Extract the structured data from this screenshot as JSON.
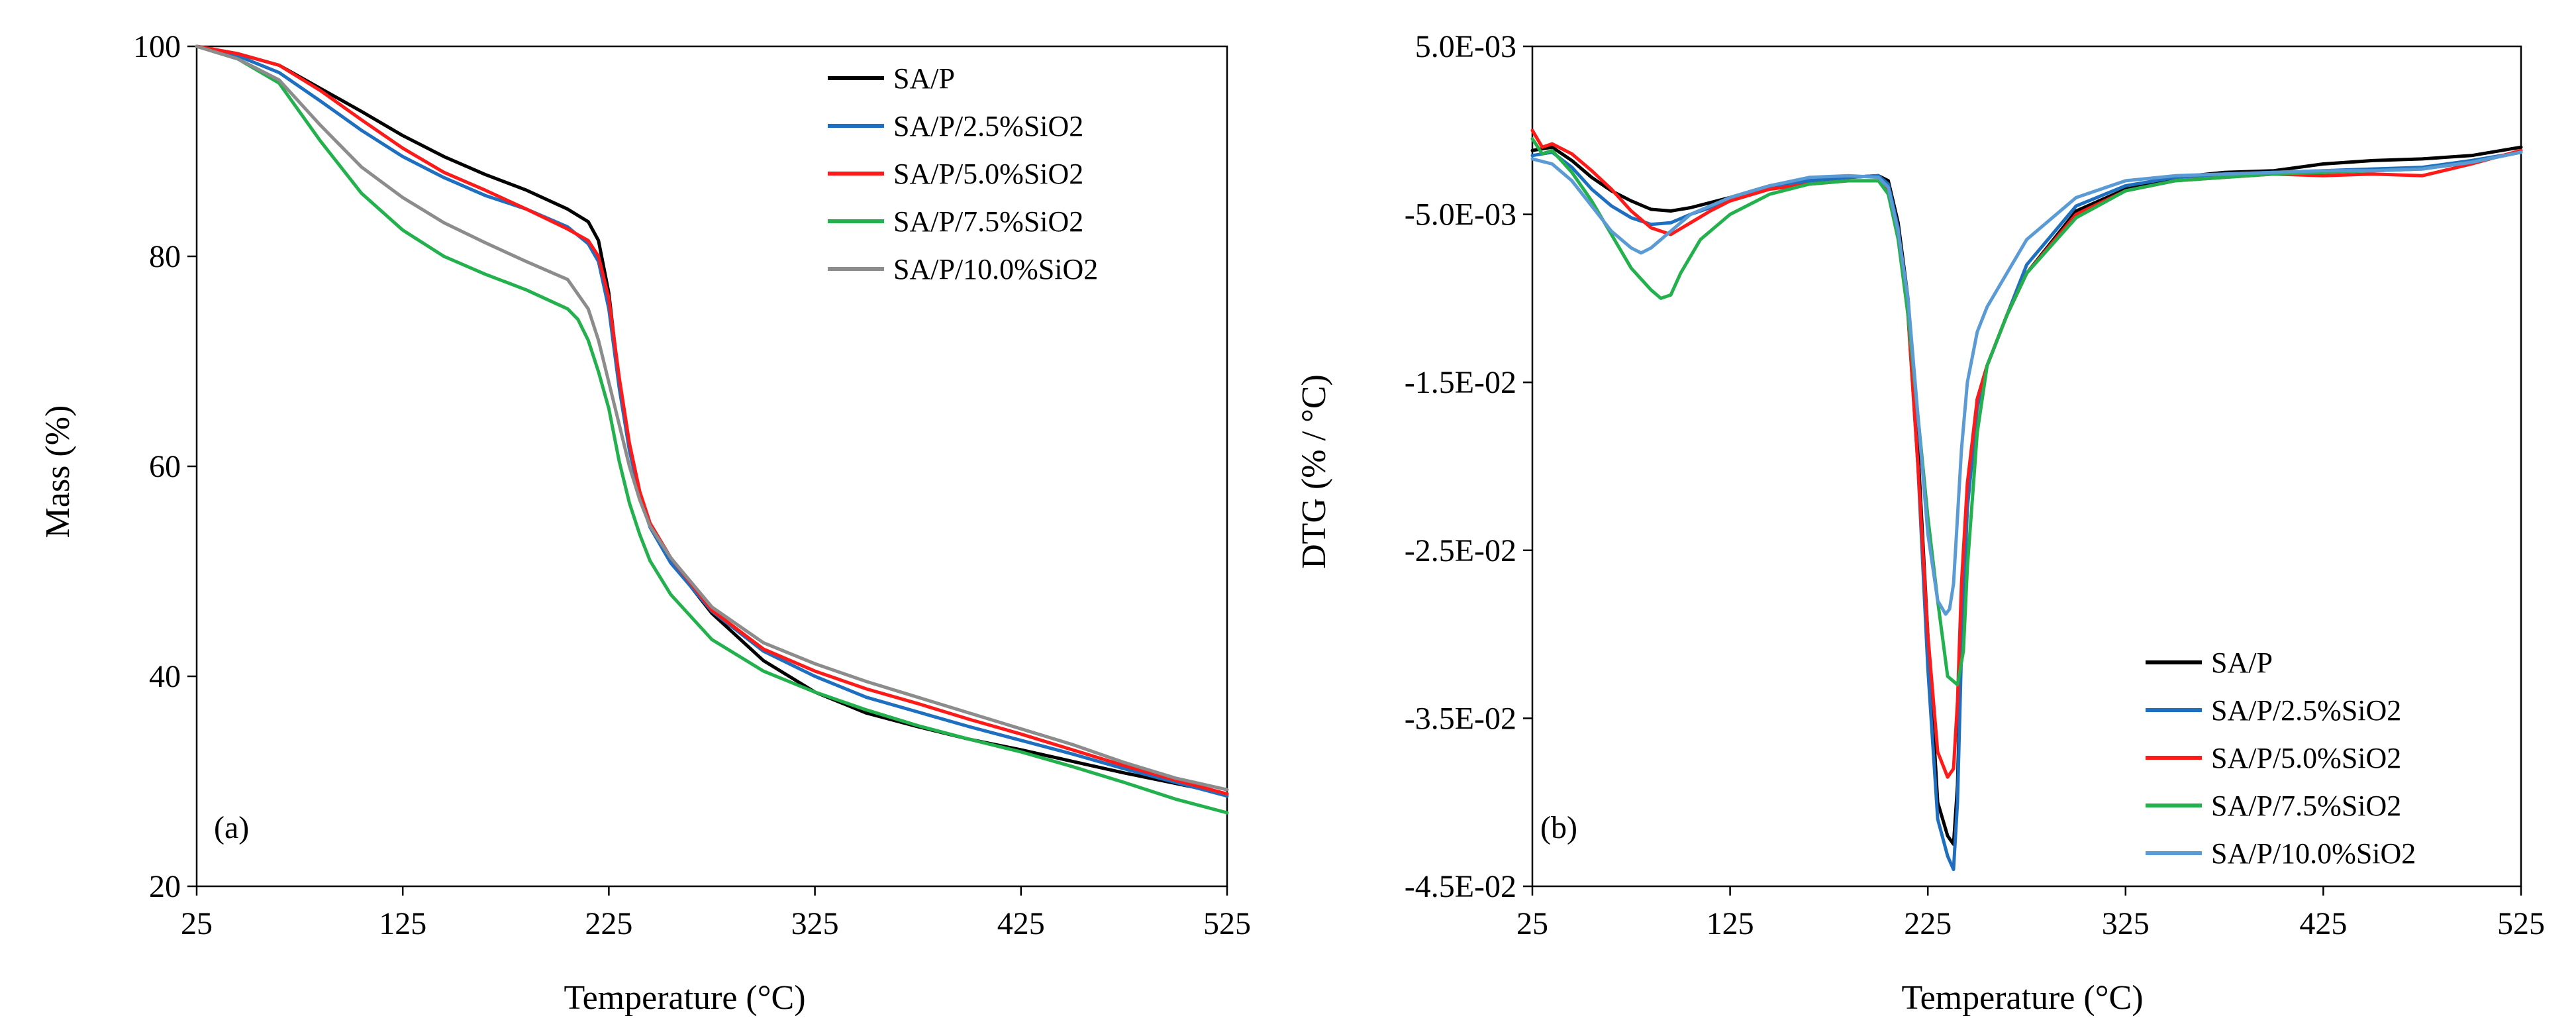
{
  "chart_data": [
    {
      "type": "line",
      "panel_label": "(a)",
      "xlabel": "Temperature (°C)",
      "ylabel": "Mass (%)",
      "xlim": [
        25,
        525
      ],
      "ylim": [
        20,
        100
      ],
      "xticks": [
        25,
        125,
        225,
        325,
        425,
        525
      ],
      "yticks": [
        20,
        40,
        60,
        80,
        100
      ],
      "ytick_labels": [
        "20",
        "40",
        "60",
        "80",
        "100"
      ],
      "legend_position": "top-right",
      "series": [
        {
          "name": "SA/P",
          "color": "#000000",
          "x": [
            25,
            45,
            65,
            85,
            105,
            125,
            145,
            165,
            185,
            205,
            215,
            220,
            225,
            230,
            235,
            240,
            245,
            255,
            275,
            300,
            325,
            350,
            375,
            400,
            425,
            450,
            475,
            500,
            525
          ],
          "y": [
            100,
            99.3,
            98.2,
            96.0,
            93.8,
            91.5,
            89.5,
            87.8,
            86.3,
            84.5,
            83.3,
            81.5,
            76.5,
            68.0,
            62.0,
            57.5,
            54.5,
            51.0,
            46.0,
            41.5,
            38.5,
            36.5,
            35.2,
            34.0,
            33.0,
            31.9,
            30.8,
            29.8,
            28.8
          ]
        },
        {
          "name": "SA/P/2.5%SiO2",
          "color": "#1f6fc0",
          "x": [
            25,
            45,
            65,
            85,
            105,
            125,
            145,
            165,
            185,
            205,
            215,
            220,
            225,
            230,
            235,
            240,
            245,
            255,
            275,
            300,
            325,
            350,
            375,
            400,
            425,
            450,
            475,
            500,
            525
          ],
          "y": [
            100,
            99.1,
            97.5,
            94.8,
            92.0,
            89.5,
            87.5,
            85.8,
            84.5,
            82.8,
            81.2,
            79.5,
            75.0,
            67.5,
            61.5,
            57.2,
            54.2,
            50.8,
            46.2,
            42.4,
            40.0,
            38.0,
            36.6,
            35.2,
            33.9,
            32.6,
            31.2,
            29.9,
            28.6
          ]
        },
        {
          "name": "SA/P/5.0%SiO2",
          "color": "#ff1a1a",
          "x": [
            25,
            45,
            65,
            85,
            105,
            125,
            145,
            165,
            185,
            205,
            215,
            220,
            225,
            230,
            235,
            240,
            245,
            255,
            275,
            300,
            325,
            350,
            375,
            400,
            425,
            450,
            475,
            500,
            525
          ],
          "y": [
            100,
            99.3,
            98.2,
            95.8,
            93.0,
            90.3,
            88.0,
            86.3,
            84.5,
            82.6,
            81.5,
            80.0,
            76.0,
            68.5,
            62.2,
            57.6,
            54.6,
            51.3,
            46.3,
            42.6,
            40.5,
            38.8,
            37.4,
            35.9,
            34.5,
            33.0,
            31.5,
            30.1,
            28.8
          ]
        },
        {
          "name": "SA/P/7.5%SiO2",
          "color": "#22b14c",
          "x": [
            25,
            45,
            65,
            85,
            105,
            125,
            145,
            165,
            185,
            205,
            210,
            215,
            220,
            225,
            230,
            235,
            240,
            245,
            255,
            275,
            300,
            325,
            350,
            375,
            400,
            425,
            450,
            475,
            500,
            525
          ],
          "y": [
            100,
            98.8,
            96.5,
            91.0,
            86.0,
            82.5,
            80.0,
            78.3,
            76.8,
            75.0,
            74.0,
            72.0,
            69.0,
            65.5,
            60.5,
            56.5,
            53.5,
            51.0,
            47.8,
            43.5,
            40.5,
            38.5,
            36.8,
            35.3,
            34.0,
            32.8,
            31.4,
            29.9,
            28.3,
            27.0
          ]
        },
        {
          "name": "SA/P/10.0%SiO2",
          "color": "#8c8c8c",
          "x": [
            25,
            45,
            65,
            85,
            105,
            125,
            145,
            165,
            185,
            205,
            215,
            220,
            225,
            230,
            235,
            240,
            245,
            255,
            275,
            300,
            325,
            350,
            375,
            400,
            425,
            450,
            475,
            500,
            525
          ],
          "y": [
            100,
            98.8,
            96.8,
            92.5,
            88.5,
            85.6,
            83.2,
            81.3,
            79.5,
            77.8,
            75.0,
            72.0,
            68.0,
            64.0,
            60.0,
            56.8,
            54.3,
            51.3,
            46.6,
            43.2,
            41.2,
            39.5,
            38.0,
            36.5,
            35.0,
            33.5,
            31.8,
            30.3,
            29.2
          ]
        }
      ]
    },
    {
      "type": "line",
      "panel_label": "(b)",
      "xlabel": "Temperature (°C)",
      "ylabel": "DTG (% / °C)",
      "xlim": [
        25,
        525
      ],
      "ylim": [
        -0.045,
        0.005
      ],
      "xticks": [
        25,
        125,
        225,
        325,
        425,
        525
      ],
      "yticks": [
        0.005,
        -0.005,
        -0.015,
        -0.025,
        -0.035,
        -0.045
      ],
      "ytick_labels": [
        "5.0E-03",
        "-5.0E-03",
        "-1.5E-02",
        "-2.5E-02",
        "-3.5E-02",
        "-4.5E-02"
      ],
      "legend_position": "bottom-right",
      "series": [
        {
          "name": "SA/P",
          "color": "#000000",
          "x": [
            25,
            35,
            45,
            55,
            65,
            75,
            85,
            95,
            105,
            125,
            145,
            165,
            185,
            200,
            205,
            210,
            215,
            220,
            225,
            230,
            235,
            238,
            240,
            242,
            245,
            250,
            255,
            265,
            275,
            300,
            325,
            350,
            375,
            400,
            425,
            450,
            475,
            500,
            525
          ],
          "y": [
            -0.0012,
            -0.001,
            -0.0018,
            -0.0028,
            -0.0036,
            -0.0042,
            -0.0047,
            -0.0048,
            -0.0046,
            -0.004,
            -0.0033,
            -0.003,
            -0.0028,
            -0.0027,
            -0.003,
            -0.0055,
            -0.01,
            -0.019,
            -0.03,
            -0.04,
            -0.042,
            -0.0425,
            -0.039,
            -0.03,
            -0.022,
            -0.016,
            -0.014,
            -0.011,
            -0.0085,
            -0.0048,
            -0.0035,
            -0.0028,
            -0.0025,
            -0.0024,
            -0.002,
            -0.0018,
            -0.0017,
            -0.0015,
            -0.001
          ]
        },
        {
          "name": "SA/P/2.5%SiO2",
          "color": "#1f6fc0",
          "x": [
            25,
            35,
            45,
            55,
            65,
            75,
            85,
            95,
            105,
            125,
            145,
            165,
            185,
            200,
            205,
            210,
            215,
            220,
            225,
            230,
            235,
            238,
            240,
            242,
            245,
            250,
            255,
            265,
            275,
            300,
            325,
            350,
            375,
            400,
            425,
            450,
            475,
            500,
            525
          ],
          "y": [
            -0.0015,
            -0.0013,
            -0.0022,
            -0.0035,
            -0.0045,
            -0.0052,
            -0.0056,
            -0.0055,
            -0.005,
            -0.0042,
            -0.0034,
            -0.003,
            -0.0028,
            -0.0027,
            -0.0032,
            -0.0058,
            -0.011,
            -0.02,
            -0.032,
            -0.041,
            -0.0432,
            -0.044,
            -0.04,
            -0.031,
            -0.0225,
            -0.0165,
            -0.014,
            -0.011,
            -0.008,
            -0.0045,
            -0.0033,
            -0.0028,
            -0.0026,
            -0.0025,
            -0.0024,
            -0.0023,
            -0.0022,
            -0.0018,
            -0.0013
          ]
        },
        {
          "name": "SA/P/5.0%SiO2",
          "color": "#ff1a1a",
          "x": [
            25,
            30,
            35,
            45,
            55,
            65,
            75,
            85,
            95,
            105,
            115,
            125,
            145,
            165,
            185,
            200,
            205,
            210,
            215,
            220,
            225,
            230,
            235,
            238,
            240,
            242,
            245,
            250,
            255,
            265,
            275,
            300,
            325,
            350,
            375,
            400,
            425,
            450,
            475,
            500,
            525
          ],
          "y": [
            0.0,
            -0.001,
            -0.0008,
            -0.0014,
            -0.0024,
            -0.0035,
            -0.0048,
            -0.0058,
            -0.0062,
            -0.0055,
            -0.0048,
            -0.0042,
            -0.0035,
            -0.0032,
            -0.003,
            -0.003,
            -0.0035,
            -0.006,
            -0.011,
            -0.02,
            -0.03,
            -0.037,
            -0.0385,
            -0.038,
            -0.034,
            -0.027,
            -0.021,
            -0.016,
            -0.014,
            -0.011,
            -0.0085,
            -0.005,
            -0.0036,
            -0.003,
            -0.0028,
            -0.0026,
            -0.0027,
            -0.0026,
            -0.0027,
            -0.002,
            -0.0012
          ]
        },
        {
          "name": "SA/P/7.5%SiO2",
          "color": "#22b14c",
          "x": [
            25,
            30,
            35,
            45,
            55,
            65,
            75,
            85,
            90,
            95,
            100,
            110,
            125,
            145,
            165,
            185,
            200,
            205,
            210,
            215,
            220,
            225,
            230,
            235,
            240,
            243,
            245,
            250,
            255,
            265,
            275,
            300,
            325,
            350,
            375,
            400,
            425,
            450,
            475,
            500,
            525
          ],
          "y": [
            -0.0005,
            -0.0014,
            -0.0012,
            -0.0025,
            -0.0042,
            -0.0062,
            -0.0082,
            -0.0095,
            -0.01,
            -0.0098,
            -0.0085,
            -0.0065,
            -0.005,
            -0.0038,
            -0.0032,
            -0.003,
            -0.003,
            -0.0038,
            -0.0065,
            -0.011,
            -0.017,
            -0.023,
            -0.028,
            -0.0325,
            -0.033,
            -0.031,
            -0.026,
            -0.018,
            -0.014,
            -0.011,
            -0.0085,
            -0.0052,
            -0.0036,
            -0.003,
            -0.0028,
            -0.0026,
            -0.0025,
            -0.0024,
            -0.0023,
            -0.0019,
            -0.0013
          ]
        },
        {
          "name": "SA/P/10.0%SiO2",
          "color": "#5b9bd5",
          "x": [
            25,
            35,
            45,
            55,
            65,
            75,
            80,
            85,
            95,
            105,
            125,
            145,
            165,
            185,
            200,
            205,
            210,
            215,
            220,
            225,
            230,
            234,
            236,
            238,
            240,
            242,
            245,
            250,
            255,
            265,
            275,
            300,
            325,
            350,
            375,
            400,
            425,
            450,
            475,
            500,
            525
          ],
          "y": [
            -0.0017,
            -0.002,
            -0.003,
            -0.0045,
            -0.006,
            -0.007,
            -0.0073,
            -0.007,
            -0.006,
            -0.005,
            -0.004,
            -0.0033,
            -0.0028,
            -0.0027,
            -0.0028,
            -0.0034,
            -0.006,
            -0.01,
            -0.017,
            -0.024,
            -0.028,
            -0.0288,
            -0.0285,
            -0.027,
            -0.023,
            -0.019,
            -0.015,
            -0.012,
            -0.0105,
            -0.0085,
            -0.0065,
            -0.004,
            -0.003,
            -0.0027,
            -0.0026,
            -0.0025,
            -0.0024,
            -0.0024,
            -0.0023,
            -0.0019,
            -0.0013
          ]
        }
      ]
    }
  ]
}
